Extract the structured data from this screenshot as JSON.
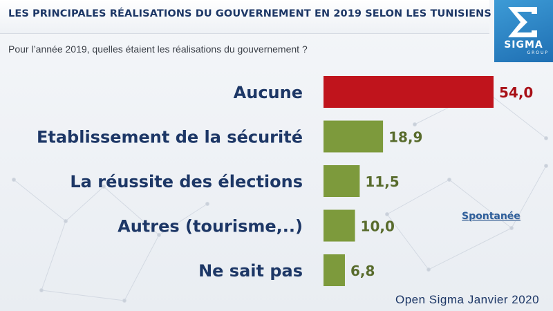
{
  "header": {
    "title": "LES PRINCIPALES RÉALISATIONS DU GOUVERNEMENT EN 2019 SELON LES TUNISIENS",
    "subtitle": "Pour l’année 2019, quelles étaient les réalisations du gouvernement ?"
  },
  "logo": {
    "name": "SIGMA",
    "sub": "GROUP",
    "icon": "sigma-logo-icon",
    "color": "#2b86c8"
  },
  "badge": "Spontanée",
  "footer": "Open Sigma Janvier 2020",
  "colors": {
    "highlight_bar": "#c0141c",
    "bar": "#7d9a3c",
    "highlight_label": "#a80f16",
    "label": "#586b2c",
    "category_text": "#1d3766"
  },
  "chart_data": {
    "type": "bar",
    "orientation": "horizontal",
    "categories": [
      "Aucune",
      "Etablissement de la sécurité",
      "La réussite des élections",
      "Autres (tourisme,..)",
      "Ne sait pas"
    ],
    "values": [
      54.0,
      18.9,
      11.5,
      10.0,
      6.8
    ],
    "value_labels": [
      "54,0",
      "18,9",
      "11,5",
      "10,0",
      "6,8"
    ],
    "highlight_index": 0,
    "xlim": [
      0,
      54
    ],
    "grid": false,
    "legend": "none"
  }
}
